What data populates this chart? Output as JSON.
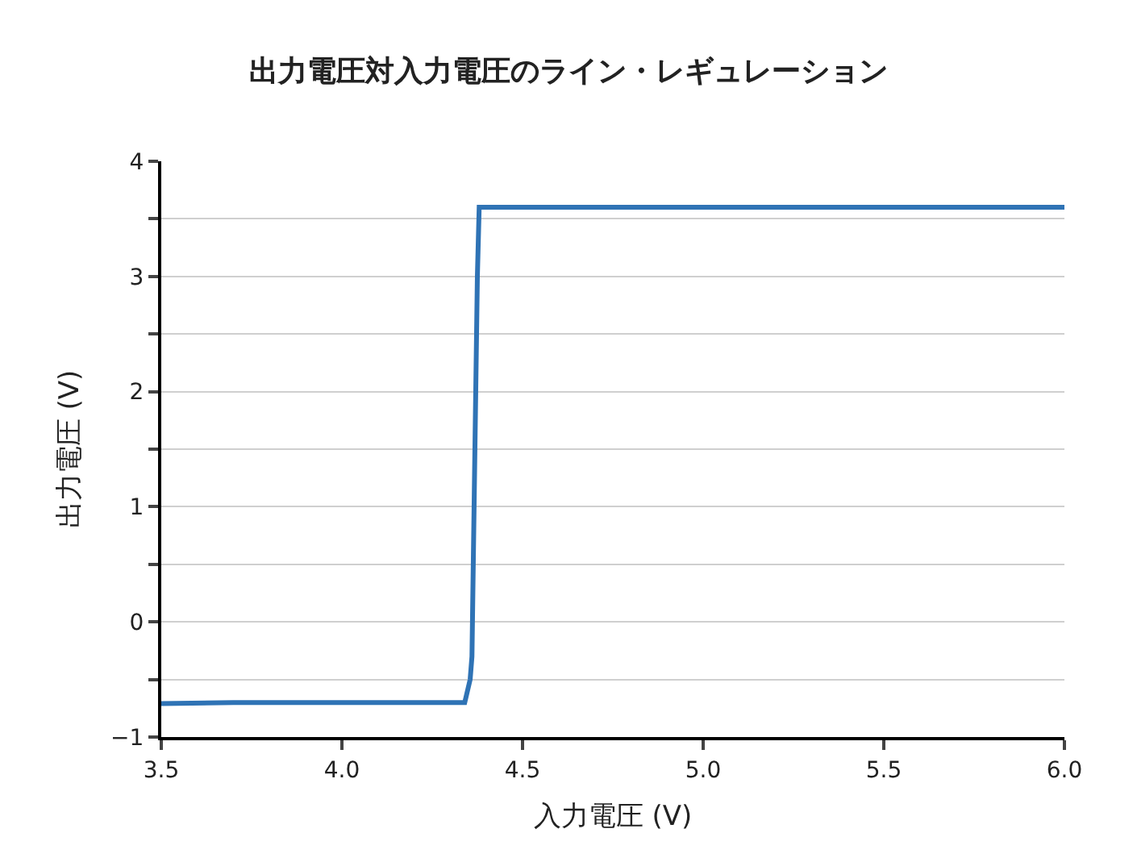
{
  "chart_data": {
    "type": "line",
    "title": "出力電圧対入力電圧のライン・レギュレーション",
    "xlabel": "入力電圧 (V)",
    "ylabel": "出力電圧 (V)",
    "x": [
      3.5,
      3.7,
      4.0,
      4.34,
      4.355,
      4.36,
      4.375,
      4.38,
      5.0,
      6.0
    ],
    "series": [
      {
        "color": "#2f73b5",
        "values": [
          -0.71,
          -0.7,
          -0.7,
          -0.7,
          -0.5,
          -0.3,
          3.0,
          3.6,
          3.6,
          3.6
        ]
      }
    ],
    "xlim": [
      3.5,
      6.0
    ],
    "xticks": [
      {
        "value": 3.5,
        "label": "3.5"
      },
      {
        "value": 4.0,
        "label": "4.0"
      },
      {
        "value": 4.5,
        "label": "4.5"
      },
      {
        "value": 5.0,
        "label": "5.0"
      },
      {
        "value": 5.5,
        "label": "5.5"
      },
      {
        "value": 6.0,
        "label": "6.0"
      }
    ],
    "ylim": [
      -1,
      4
    ],
    "yticks": [
      {
        "value": -1,
        "label": "−1"
      },
      {
        "value": -0.5,
        "label": null
      },
      0,
      {
        "value": 0.5,
        "label": null
      },
      1,
      {
        "value": 1.5,
        "label": null
      },
      2,
      {
        "value": 2.5,
        "label": null
      },
      3,
      {
        "value": 3.5,
        "label": null
      },
      4
    ],
    "grid": "y",
    "marker": "none",
    "line_style": "solid"
  }
}
